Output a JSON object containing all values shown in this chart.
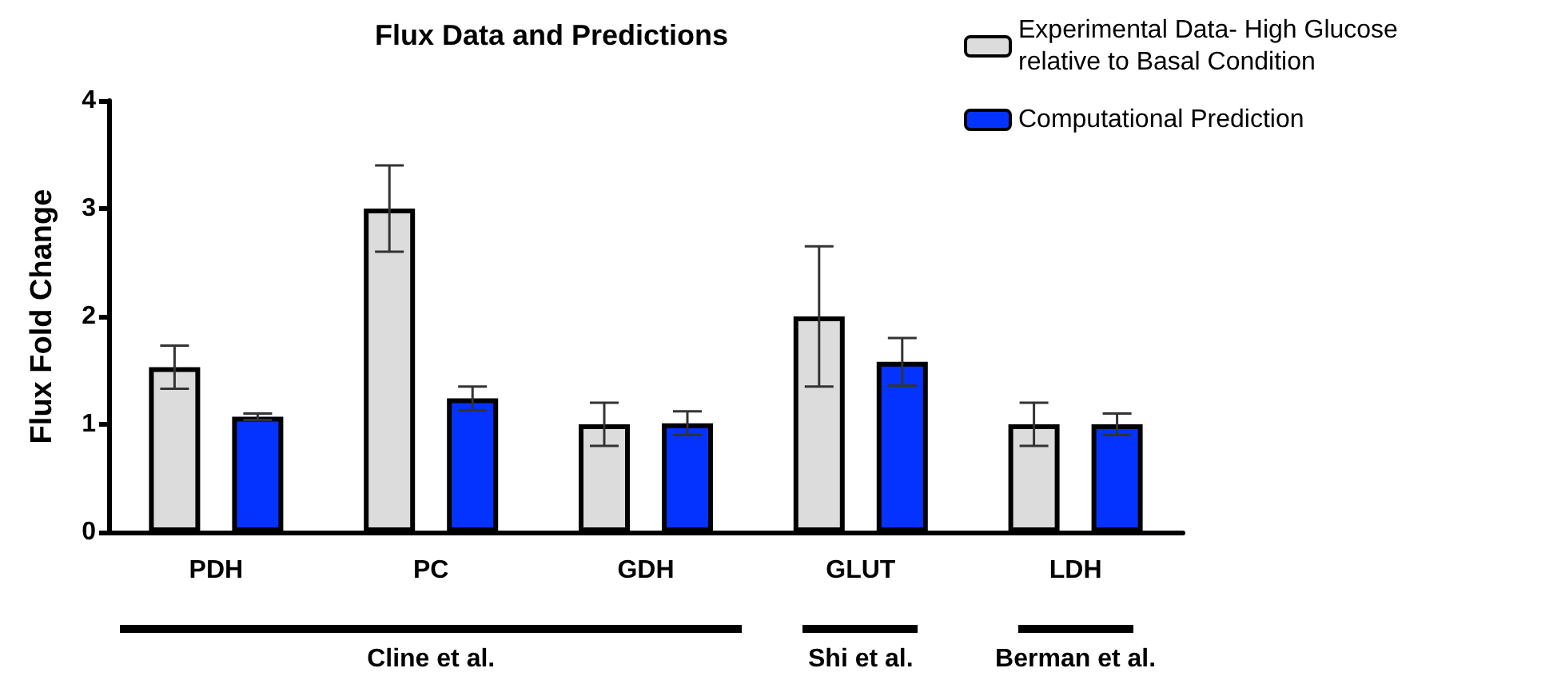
{
  "chart_data": {
    "type": "bar",
    "title": "Flux Data and Predictions",
    "ylabel": "Flux Fold Change",
    "categories": [
      "PDH",
      "PC",
      "GDH",
      "GLUT",
      "LDH"
    ],
    "series": [
      {
        "name": "Experimental Data- High Glucose relative to Basal Condition",
        "color": "#dcdcdc",
        "values": [
          1.53,
          3.0,
          1.0,
          2.0,
          1.0
        ],
        "errors": [
          0.2,
          0.4,
          0.2,
          0.65,
          0.2
        ]
      },
      {
        "name": "Computational Prediction",
        "color": "#0433ff",
        "values": [
          1.07,
          1.24,
          1.01,
          1.58,
          1.0
        ],
        "errors": [
          0.03,
          0.11,
          0.11,
          0.22,
          0.1
        ]
      }
    ],
    "ylim": [
      0,
      4
    ],
    "yticks": [
      0,
      1,
      2,
      3,
      4
    ],
    "grid": false,
    "legend": "top right",
    "annotations": [
      "Cline et al.",
      "Shi et al.",
      "Berman et al."
    ]
  }
}
